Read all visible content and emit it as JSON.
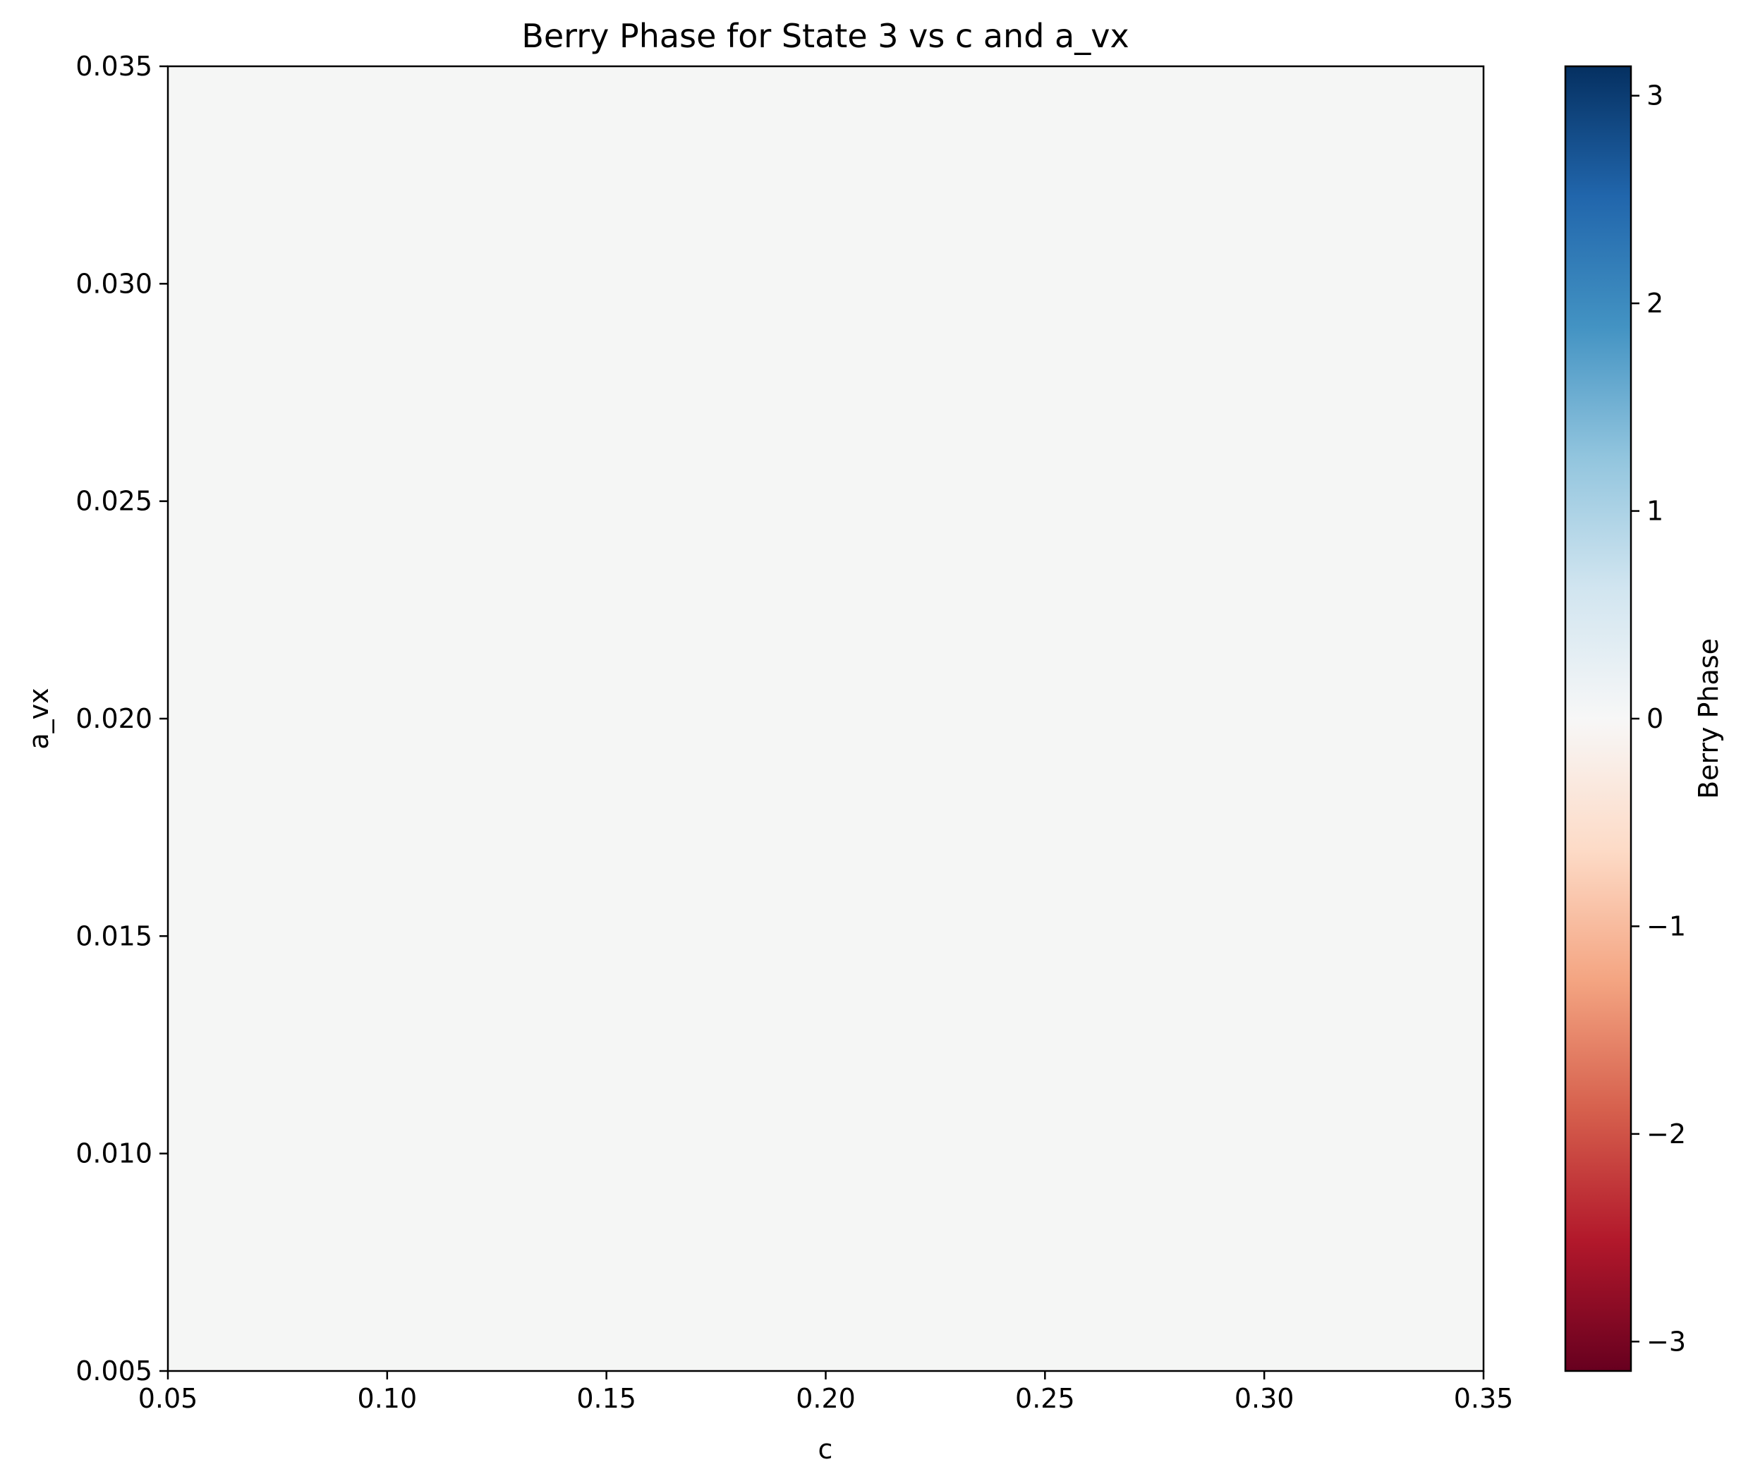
{
  "chart_data": {
    "type": "heatmap",
    "title": "Berry Phase for State 3 vs c and a_vx",
    "xlabel": "c",
    "ylabel": "a_vx",
    "xlim": [
      0.05,
      0.35
    ],
    "ylim": [
      0.005,
      0.035
    ],
    "x_ticks": [
      "0.05",
      "0.10",
      "0.15",
      "0.20",
      "0.25",
      "0.30",
      "0.35"
    ],
    "y_ticks": [
      "0.005",
      "0.010",
      "0.015",
      "0.020",
      "0.025",
      "0.030",
      "0.035"
    ],
    "z_value": 0,
    "colormap": "RdBu",
    "colorbar": {
      "label": "Berry Phase",
      "range": [
        -3.14159,
        3.14159
      ],
      "ticks": [
        "−3",
        "−2",
        "−1",
        "0",
        "1",
        "2",
        "3"
      ]
    },
    "grid": false
  }
}
